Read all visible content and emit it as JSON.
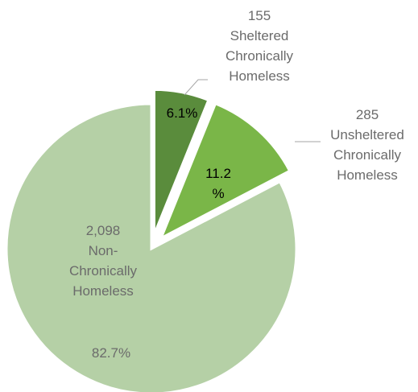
{
  "chart_data": {
    "type": "pie",
    "title": "",
    "legend": "none",
    "slices": [
      {
        "label_lines": [
          "155",
          "Sheltered",
          "Chronically",
          "Homeless"
        ],
        "value": 155,
        "percent_lines": [
          "6.1%"
        ],
        "color": "#5a8c3c"
      },
      {
        "label_lines": [
          "285",
          "Unsheltered",
          "Chronically",
          "Homeless"
        ],
        "value": 285,
        "percent_lines": [
          "11.2",
          "%"
        ],
        "color": "#7ab648"
      },
      {
        "label_lines": [
          "2,098",
          "Non-",
          "Chronically",
          "Homeless"
        ],
        "value": 2098,
        "percent_lines": [
          "82.7%"
        ],
        "color": "#b5d0a6"
      }
    ]
  }
}
